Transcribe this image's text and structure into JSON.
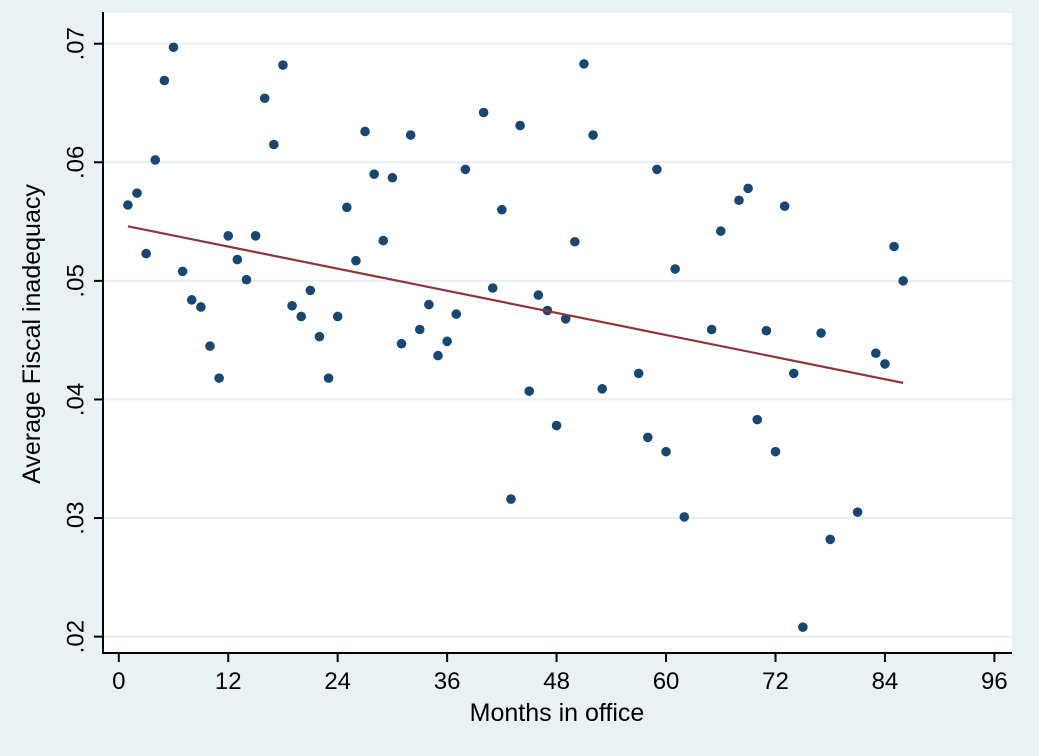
{
  "chart_data": {
    "type": "scatter",
    "title": "",
    "xlabel": "Months in office",
    "ylabel": "Average Fiscal inadequacy",
    "x_ticks": [
      0,
      12,
      24,
      36,
      48,
      60,
      72,
      84,
      96
    ],
    "x_tick_labels": [
      "0",
      "12",
      "24",
      "36",
      "48",
      "60",
      "72",
      "84",
      "96"
    ],
    "y_ticks": [
      0.02,
      0.03,
      0.04,
      0.05,
      0.06,
      0.07
    ],
    "y_tick_labels": [
      ".02",
      ".03",
      ".04",
      ".05",
      ".06",
      ".07"
    ],
    "xlim": [
      -1.73,
      97.93
    ],
    "ylim": [
      0.01862,
      0.07259
    ],
    "grid": true,
    "legend": null,
    "series": [
      {
        "name": "scatter-points",
        "type": "scatter",
        "points": [
          [
            1,
            0.0564
          ],
          [
            2,
            0.0574
          ],
          [
            3,
            0.0523
          ],
          [
            4,
            0.0602
          ],
          [
            5,
            0.0669
          ],
          [
            6,
            0.0697
          ],
          [
            7,
            0.0508
          ],
          [
            8,
            0.0484
          ],
          [
            9,
            0.0478
          ],
          [
            10,
            0.0445
          ],
          [
            11,
            0.0418
          ],
          [
            12,
            0.0538
          ],
          [
            13,
            0.0518
          ],
          [
            14,
            0.0501
          ],
          [
            15,
            0.0538
          ],
          [
            16,
            0.0654
          ],
          [
            17,
            0.0615
          ],
          [
            18,
            0.0682
          ],
          [
            19,
            0.0479
          ],
          [
            20,
            0.047
          ],
          [
            21,
            0.0492
          ],
          [
            22,
            0.0453
          ],
          [
            23,
            0.0418
          ],
          [
            24,
            0.047
          ],
          [
            25,
            0.0562
          ],
          [
            26,
            0.0517
          ],
          [
            27,
            0.0626
          ],
          [
            28,
            0.059
          ],
          [
            29,
            0.0534
          ],
          [
            30,
            0.0587
          ],
          [
            31,
            0.0447
          ],
          [
            32,
            0.0623
          ],
          [
            33,
            0.0459
          ],
          [
            34,
            0.048
          ],
          [
            35,
            0.0437
          ],
          [
            36,
            0.0449
          ],
          [
            37,
            0.0472
          ],
          [
            38,
            0.0594
          ],
          [
            40,
            0.0642
          ],
          [
            41,
            0.0494
          ],
          [
            42,
            0.056
          ],
          [
            43,
            0.0316
          ],
          [
            44,
            0.0631
          ],
          [
            45,
            0.0407
          ],
          [
            46,
            0.0488
          ],
          [
            47,
            0.0475
          ],
          [
            48,
            0.0378
          ],
          [
            49,
            0.0468
          ],
          [
            50,
            0.0533
          ],
          [
            51,
            0.0683
          ],
          [
            52,
            0.0623
          ],
          [
            53,
            0.0409
          ],
          [
            57,
            0.0422
          ],
          [
            58,
            0.0368
          ],
          [
            59,
            0.0594
          ],
          [
            60,
            0.0356
          ],
          [
            61,
            0.051
          ],
          [
            62,
            0.0301
          ],
          [
            65,
            0.0459
          ],
          [
            66,
            0.0542
          ],
          [
            68,
            0.0568
          ],
          [
            69,
            0.0578
          ],
          [
            70,
            0.0383
          ],
          [
            71,
            0.0458
          ],
          [
            72,
            0.0356
          ],
          [
            73,
            0.0563
          ],
          [
            74,
            0.0422
          ],
          [
            75,
            0.0208
          ],
          [
            77,
            0.0456
          ],
          [
            78,
            0.0282
          ],
          [
            81,
            0.0305
          ],
          [
            83,
            0.0439
          ],
          [
            84,
            0.043
          ],
          [
            85,
            0.0529
          ],
          [
            86,
            0.05
          ]
        ]
      },
      {
        "name": "linear-fit",
        "type": "line",
        "points": [
          [
            1,
            0.0546
          ],
          [
            86,
            0.0414
          ]
        ]
      }
    ],
    "colors": {
      "marker": "#1a476f",
      "fit_line": "#90353b",
      "background": "#e8f1f3",
      "plot_background": "#ffffff",
      "gridline": "#e7eef2",
      "axis": "#000000"
    }
  }
}
